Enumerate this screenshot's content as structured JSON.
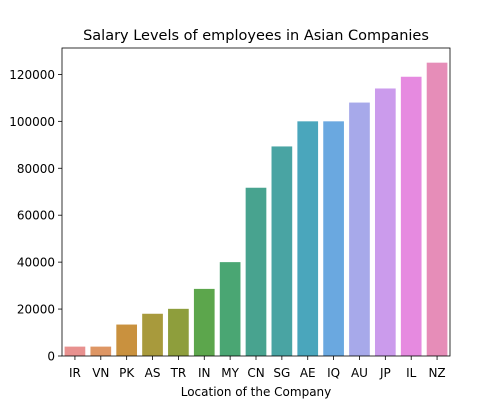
{
  "chart_data": {
    "type": "bar",
    "title": "Salary Levels of employees in Asian Companies",
    "xlabel": "Location of the Company",
    "ylabel": "",
    "categories": [
      "IR",
      "VN",
      "PK",
      "AS",
      "TR",
      "IN",
      "MY",
      "CN",
      "SG",
      "AE",
      "IQ",
      "AU",
      "JP",
      "IL",
      "NZ"
    ],
    "values": [
      4000,
      4000,
      13400,
      18000,
      20100,
      28600,
      40000,
      71700,
      89300,
      100000,
      100000,
      108000,
      114000,
      119000,
      125000
    ],
    "colors": [
      "#e8918f",
      "#de9664",
      "#c9913e",
      "#a89a3c",
      "#8e9e3c",
      "#5ca64c",
      "#4aa673",
      "#48a38f",
      "#49a4a3",
      "#4aa6bc",
      "#6aa8e0",
      "#a7a9ea",
      "#cb9bec",
      "#e68ae0",
      "#e68db8"
    ],
    "y_ticks": [
      0,
      20000,
      40000,
      60000,
      80000,
      100000,
      120000
    ],
    "ylim": [
      0,
      131250
    ],
    "grid": false,
    "legend": "none"
  }
}
